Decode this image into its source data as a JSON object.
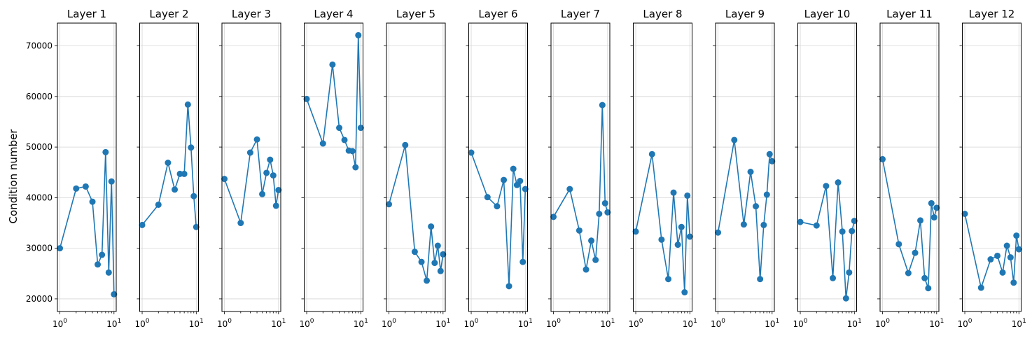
{
  "figure": {
    "ylabel": "Condition number",
    "series_color": "#1f77b4",
    "y_scale": "linear",
    "x_scale": "log",
    "ylim": [
      17500,
      74500
    ],
    "xlim": [
      0.9,
      11.0
    ],
    "grid": true
  },
  "y_ticks": [
    {
      "value": 20000,
      "label": "20000"
    },
    {
      "value": 30000,
      "label": "30000"
    },
    {
      "value": 40000,
      "label": "40000"
    },
    {
      "value": 50000,
      "label": "50000"
    },
    {
      "value": 60000,
      "label": "60000"
    },
    {
      "value": 70000,
      "label": "70000"
    }
  ],
  "x_ticks": [
    {
      "value": 1,
      "base": "10",
      "exp": "0"
    },
    {
      "value": 10,
      "base": "10",
      "exp": "1"
    }
  ],
  "chart_data": [
    {
      "type": "line",
      "title": "Layer 1",
      "x": [
        1,
        2,
        3,
        4,
        5,
        6,
        7,
        8,
        9,
        10
      ],
      "y": [
        30000,
        41800,
        42200,
        39200,
        26800,
        28700,
        49000,
        25200,
        43200,
        20900
      ]
    },
    {
      "type": "line",
      "title": "Layer 2",
      "x": [
        1,
        2,
        3,
        4,
        5,
        6,
        7,
        8,
        9,
        10
      ],
      "y": [
        34600,
        38600,
        46900,
        41600,
        44700,
        44700,
        58400,
        49900,
        40300,
        34200
      ]
    },
    {
      "type": "line",
      "title": "Layer 3",
      "x": [
        1,
        2,
        3,
        4,
        5,
        6,
        7,
        8,
        9,
        10
      ],
      "y": [
        43700,
        35000,
        48900,
        51500,
        40700,
        44900,
        47500,
        44400,
        38400,
        41500
      ]
    },
    {
      "type": "line",
      "title": "Layer 4",
      "x": [
        1,
        2,
        3,
        4,
        5,
        6,
        7,
        8,
        9,
        10
      ],
      "y": [
        59500,
        50700,
        66300,
        53800,
        51400,
        49300,
        49200,
        46000,
        72100,
        53800
      ]
    },
    {
      "type": "line",
      "title": "Layer 5",
      "x": [
        1,
        2,
        3,
        4,
        5,
        6,
        7,
        8,
        9,
        10
      ],
      "y": [
        38700,
        50400,
        29300,
        27300,
        23600,
        34300,
        27100,
        30500,
        25500,
        28800
      ]
    },
    {
      "type": "line",
      "title": "Layer 6",
      "x": [
        1,
        2,
        3,
        4,
        5,
        6,
        7,
        8,
        9,
        10
      ],
      "y": [
        48900,
        40100,
        38300,
        43500,
        22500,
        45700,
        42500,
        43300,
        27300,
        41700
      ]
    },
    {
      "type": "line",
      "title": "Layer 7",
      "x": [
        1,
        2,
        3,
        4,
        5,
        6,
        7,
        8,
        9,
        10
      ],
      "y": [
        36200,
        41700,
        33500,
        25800,
        31500,
        27700,
        36800,
        58300,
        38900,
        37100
      ]
    },
    {
      "type": "line",
      "title": "Layer 8",
      "x": [
        1,
        2,
        3,
        4,
        5,
        6,
        7,
        8,
        9,
        10
      ],
      "y": [
        33300,
        48600,
        31700,
        23900,
        41000,
        30700,
        34200,
        21300,
        40400,
        32300
      ]
    },
    {
      "type": "line",
      "title": "Layer 9",
      "x": [
        1,
        2,
        3,
        4,
        5,
        6,
        7,
        8,
        9,
        10
      ],
      "y": [
        33100,
        51400,
        34700,
        45100,
        38300,
        23900,
        34600,
        40600,
        48600,
        47200
      ]
    },
    {
      "type": "line",
      "title": "Layer 10",
      "x": [
        1,
        2,
        3,
        4,
        5,
        6,
        7,
        8,
        9,
        10
      ],
      "y": [
        35200,
        34500,
        42300,
        24100,
        43000,
        33300,
        20100,
        25200,
        33400,
        35400
      ]
    },
    {
      "type": "line",
      "title": "Layer 11",
      "x": [
        1,
        2,
        3,
        4,
        5,
        6,
        7,
        8,
        9,
        10
      ],
      "y": [
        47600,
        30800,
        25100,
        29100,
        35500,
        24100,
        22100,
        38900,
        36100,
        38000
      ]
    },
    {
      "type": "line",
      "title": "Layer 12",
      "x": [
        1,
        2,
        3,
        4,
        5,
        6,
        7,
        8,
        9,
        10
      ],
      "y": [
        36800,
        22200,
        27800,
        28500,
        25200,
        30500,
        28200,
        23200,
        32500,
        29800
      ]
    }
  ]
}
